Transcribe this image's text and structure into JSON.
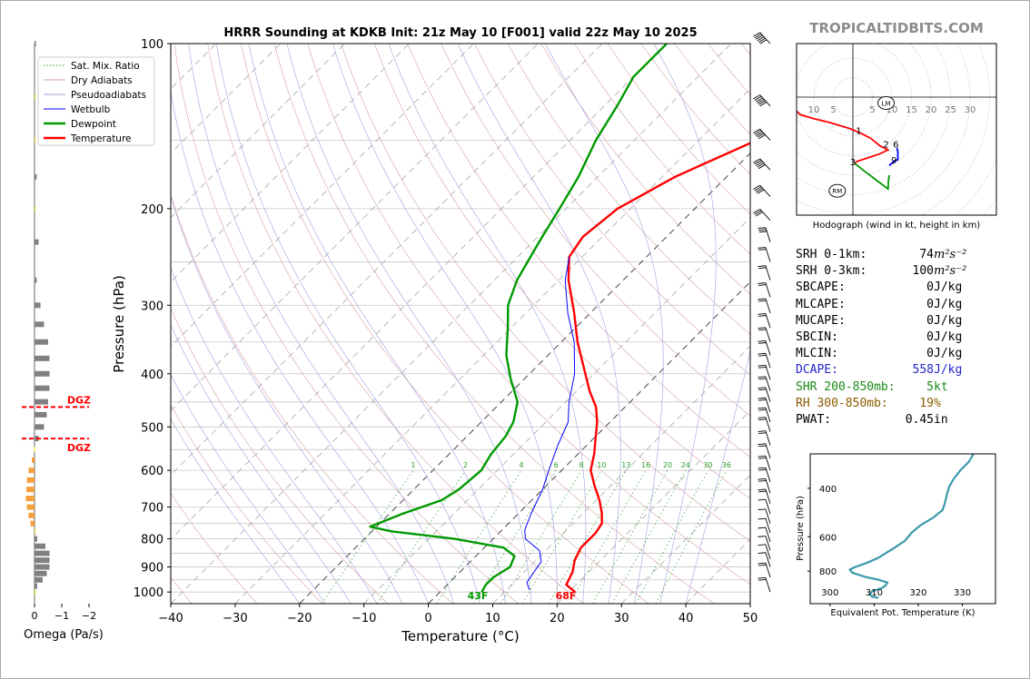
{
  "title": "HRRR Sounding at KDKB Init: 21z May 10 [F001] valid 22z May 10 2025",
  "brand": "TROPICALTIDBITS.COM",
  "colors": {
    "temperature": "#ff0000",
    "dewpoint": "#009900",
    "wetbulb": "#0000ff",
    "dry_adiabat": "#d9a0a0",
    "moist_adiabat": "#a0a0e0",
    "mixing_ratio": "#2ca02c",
    "theta_e": "#3a9aab",
    "omega_neg": "#808080",
    "omega_pos": "#f5a03a",
    "omega_small": "#f3e13a",
    "dgz": "#ff0000",
    "dcape": "#2222cc",
    "shear": "#1a8a1a",
    "rh": "#8b5a00"
  },
  "chart_data": [
    {
      "type": "line",
      "name": "skewt",
      "xlabel": "Temperature (°C)",
      "ylabel": "Pressure (hPa)",
      "xlim": [
        -40,
        50
      ],
      "ylim": [
        1050,
        100
      ],
      "yscale": "log",
      "x_ticks": [
        -40,
        -30,
        -20,
        -10,
        0,
        10,
        20,
        30,
        40,
        50
      ],
      "y_ticks": [
        100,
        200,
        300,
        400,
        500,
        600,
        700,
        800,
        900,
        1000
      ],
      "legend": {
        "position": "top-left",
        "entries": [
          {
            "label": "Sat. Mix. Ratio",
            "style": "dotted",
            "color": "#2ca02c"
          },
          {
            "label": "Dry Adiabats",
            "style": "solid",
            "color": "#d9a0a0"
          },
          {
            "label": "Pseudoadiabats",
            "style": "solid",
            "color": "#a0a0e0"
          },
          {
            "label": "Wetbulb",
            "style": "solid",
            "color": "#0000ff"
          },
          {
            "label": "Dewpoint",
            "style": "solid",
            "color": "#009900"
          },
          {
            "label": "Temperature",
            "style": "solid",
            "color": "#ff0000"
          }
        ]
      },
      "mixing_ratio_labels": [
        "1",
        "2",
        "4",
        "6",
        "8",
        "10",
        "13",
        "16",
        "20",
        "24",
        "30",
        "36"
      ],
      "surface_labels": {
        "temperature": "68F",
        "dewpoint": "43F"
      },
      "series": [
        {
          "name": "Temperature",
          "points": [
            [
              21.0,
              1000
            ],
            [
              18.5,
              970
            ],
            [
              17.5,
              920
            ],
            [
              16.0,
              875
            ],
            [
              15.0,
              830
            ],
            [
              15.0,
              780
            ],
            [
              14.5,
              750
            ],
            [
              13.0,
              720
            ],
            [
              10.5,
              680
            ],
            [
              7.5,
              640
            ],
            [
              4.5,
              600
            ],
            [
              2.5,
              560
            ],
            [
              0.0,
              520
            ],
            [
              -2.0,
              490
            ],
            [
              -4.5,
              460
            ],
            [
              -8.0,
              430
            ],
            [
              -12.5,
              390
            ],
            [
              -17.5,
              350
            ],
            [
              -22.5,
              310
            ],
            [
              -28.5,
              270
            ],
            [
              -32.0,
              245
            ],
            [
              -33.0,
              225
            ],
            [
              -32.0,
              200
            ],
            [
              -28.0,
              175
            ],
            [
              -21.0,
              150
            ],
            [
              -15.0,
              130
            ],
            [
              -10.5,
              115
            ],
            [
              -7.0,
              100
            ]
          ]
        },
        {
          "name": "Dewpoint",
          "points": [
            [
              6.5,
              1000
            ],
            [
              6.0,
              970
            ],
            [
              6.0,
              940
            ],
            [
              7.0,
              900
            ],
            [
              6.0,
              860
            ],
            [
              3.0,
              830
            ],
            [
              -6.0,
              800
            ],
            [
              -17.0,
              775
            ],
            [
              -21.0,
              760
            ],
            [
              -18.0,
              720
            ],
            [
              -14.0,
              680
            ],
            [
              -13.0,
              650
            ],
            [
              -12.5,
              600
            ],
            [
              -13.5,
              560
            ],
            [
              -14.0,
              520
            ],
            [
              -15.0,
              490
            ],
            [
              -17.5,
              450
            ],
            [
              -22.0,
              410
            ],
            [
              -26.5,
              370
            ],
            [
              -30.5,
              330
            ],
            [
              -34.0,
              300
            ],
            [
              -36.5,
              270
            ],
            [
              -39.0,
              230
            ],
            [
              -41.0,
              200
            ],
            [
              -43.0,
              175
            ],
            [
              -46.0,
              150
            ],
            [
              -48.0,
              130
            ],
            [
              -50.0,
              115
            ],
            [
              -50.0,
              100
            ]
          ]
        },
        {
          "name": "Wetbulb",
          "points": [
            [
              13.5,
              990
            ],
            [
              12.0,
              960
            ],
            [
              11.5,
              920
            ],
            [
              11.0,
              880
            ],
            [
              9.0,
              840
            ],
            [
              5.0,
              800
            ],
            [
              3.5,
              770
            ],
            [
              2.0,
              720
            ],
            [
              0.0,
              650
            ],
            [
              -2.0,
              600
            ],
            [
              -4.5,
              540
            ],
            [
              -6.5,
              490
            ],
            [
              -9.5,
              450
            ],
            [
              -13.0,
              400
            ],
            [
              -18.0,
              350
            ],
            [
              -23.5,
              310
            ],
            [
              -29.0,
              270
            ],
            [
              -32.0,
              245
            ]
          ]
        }
      ]
    },
    {
      "type": "bar",
      "name": "omega",
      "xlabel": "Omega (Pa/s)",
      "x_ticks": [
        "0",
        "−1",
        "−2"
      ],
      "xlim": [
        0.15,
        -2.4
      ],
      "levels": [
        100,
        125,
        150,
        175,
        200,
        230,
        270,
        300,
        325,
        350,
        375,
        400,
        425,
        450,
        475,
        500,
        525,
        550,
        575,
        600,
        625,
        650,
        675,
        700,
        725,
        750,
        775,
        800,
        825,
        850,
        875,
        900,
        925,
        950,
        975,
        1000
      ],
      "values": [
        -0.05,
        -0.02,
        0.0,
        -0.08,
        -0.02,
        -0.15,
        -0.08,
        -0.22,
        -0.35,
        -0.5,
        -0.55,
        -0.55,
        -0.55,
        -0.5,
        -0.45,
        -0.35,
        -0.15,
        0.02,
        0.1,
        0.22,
        0.28,
        0.3,
        0.32,
        0.28,
        0.22,
        0.15,
        0.0,
        -0.1,
        -0.4,
        -0.55,
        -0.55,
        -0.55,
        -0.45,
        -0.3,
        -0.1,
        0.0
      ],
      "annotations": [
        {
          "label": "DGZ",
          "pressure": 460
        },
        {
          "label": "DGZ",
          "pressure": 525
        }
      ]
    },
    {
      "type": "scatter",
      "name": "hodograph",
      "caption": "Hodograph (wind in kt, height in km)",
      "x_ticks_left": [
        "10",
        "5"
      ],
      "x_ticks_right": [
        "5",
        "10",
        "15",
        "20",
        "25",
        "30"
      ],
      "storm_motion": [
        {
          "label": "LM",
          "u": 8.5,
          "v": -1.5
        },
        {
          "label": "RM",
          "u": -4,
          "v": -24
        }
      ],
      "height_labels": [
        {
          "label": "1",
          "u": 1.5,
          "v": -8.5
        },
        {
          "label": "2",
          "u": 8.5,
          "v": -12
        },
        {
          "label": "6",
          "u": 11,
          "v": -12
        },
        {
          "label": "3",
          "u": 0,
          "v": -16.5
        },
        {
          "label": "9",
          "u": 10.5,
          "v": -16
        }
      ],
      "segments": [
        {
          "color": "#ff0000",
          "points": [
            [
              -14.5,
              -3.5
            ],
            [
              -13.5,
              -4.5
            ],
            [
              -10,
              -5.5
            ],
            [
              -6,
              -6.5
            ],
            [
              -1,
              -8
            ],
            [
              1.5,
              -9
            ],
            [
              4.5,
              -10.5
            ],
            [
              7,
              -12.5
            ],
            [
              8,
              -13
            ],
            [
              9,
              -13.5
            ],
            [
              7,
              -14.5
            ],
            [
              4,
              -15.5
            ],
            [
              1,
              -16.5
            ],
            [
              0.5,
              -17
            ]
          ]
        },
        {
          "color": "#009900",
          "points": [
            [
              0.5,
              -17
            ],
            [
              3,
              -19
            ],
            [
              5,
              -20.5
            ],
            [
              7,
              -22
            ],
            [
              9,
              -23.5
            ],
            [
              9.1,
              -21.5
            ],
            [
              9.3,
              -20
            ]
          ]
        },
        {
          "color": "#0000ff",
          "points": [
            [
              9.3,
              -17.5
            ],
            [
              10.5,
              -16.5
            ],
            [
              11.5,
              -16
            ],
            [
              11.5,
              -14
            ],
            [
              11.3,
              -13
            ]
          ]
        }
      ]
    },
    {
      "type": "line",
      "name": "theta_e",
      "xlabel": "Equivalent Pot. Temperature (K)",
      "ylabel": "Pressure (hPa)",
      "xlim": [
        295.5,
        337.5
      ],
      "ylim": [
        1050,
        300
      ],
      "x_ticks": [
        300,
        310,
        320,
        330
      ],
      "y_ticks": [
        400,
        600,
        800
      ],
      "series": [
        {
          "name": "Theta-E",
          "points": [
            [
              311,
              1000
            ],
            [
              309.5,
              990
            ],
            [
              309,
              970
            ],
            [
              309.5,
              950
            ],
            [
              310.5,
              935
            ],
            [
              311.5,
              925
            ],
            [
              312.5,
              905
            ],
            [
              313,
              880
            ],
            [
              311,
              860
            ],
            [
              308,
              840
            ],
            [
              305,
              810
            ],
            [
              304.5,
              790
            ],
            [
              305.5,
              775
            ],
            [
              308.5,
              745
            ],
            [
              311,
              715
            ],
            [
              312.5,
              690
            ],
            [
              314.5,
              660
            ],
            [
              317,
              620
            ],
            [
              318.5,
              580
            ],
            [
              320.5,
              545
            ],
            [
              323.5,
              510
            ],
            [
              325.5,
              480
            ],
            [
              326,
              455
            ],
            [
              326.5,
              420
            ],
            [
              327,
              395
            ],
            [
              328,
              370
            ],
            [
              329.5,
              345
            ],
            [
              331.5,
              320
            ],
            [
              332.5,
              300
            ]
          ]
        }
      ]
    }
  ],
  "stats": [
    {
      "key": "SRH 0-1km:",
      "value": "74",
      "unit": "m²s⁻²",
      "color": "#000000"
    },
    {
      "key": "SRH 0-3km:",
      "value": "100",
      "unit": "m²s⁻²",
      "color": "#000000"
    },
    {
      "key": "SBCAPE:",
      "value": "0",
      "unit": "J/kg",
      "color": "#000000"
    },
    {
      "key": "MLCAPE:",
      "value": "0",
      "unit": "J/kg",
      "color": "#000000"
    },
    {
      "key": "MUCAPE:",
      "value": "0",
      "unit": "J/kg",
      "color": "#000000"
    },
    {
      "key": "SBCIN:",
      "value": "0",
      "unit": "J/kg",
      "color": "#000000"
    },
    {
      "key": "MLCIN:",
      "value": "0",
      "unit": "J/kg",
      "color": "#000000"
    },
    {
      "key": "DCAPE:",
      "value": "558",
      "unit": "J/kg",
      "color": "#2222cc"
    },
    {
      "key": "SHR 200-850mb:",
      "value": "5",
      "unit": "kt",
      "color": "#1a8a1a"
    },
    {
      "key": "RH 300-850mb:",
      "value": "19",
      "unit": "%",
      "color": "#8b5a00"
    },
    {
      "key": "PWAT:",
      "value": "0.45",
      "unit": "in",
      "color": "#000000"
    }
  ],
  "wind_barbs": {
    "levels": [
      100,
      130,
      150,
      170,
      190,
      210,
      230,
      250,
      270,
      290,
      310,
      330,
      350,
      370,
      390,
      410,
      430,
      450,
      470,
      490,
      510,
      540,
      570,
      600,
      630,
      660,
      690,
      720,
      750,
      780,
      810,
      840,
      870,
      900,
      940,
      1000
    ],
    "speeds_kt": [
      60,
      55,
      50,
      45,
      40,
      30,
      25,
      20,
      20,
      20,
      20,
      15,
      15,
      15,
      15,
      15,
      15,
      15,
      15,
      15,
      15,
      15,
      15,
      15,
      15,
      15,
      15,
      10,
      10,
      10,
      10,
      10,
      10,
      10,
      15,
      15
    ]
  }
}
